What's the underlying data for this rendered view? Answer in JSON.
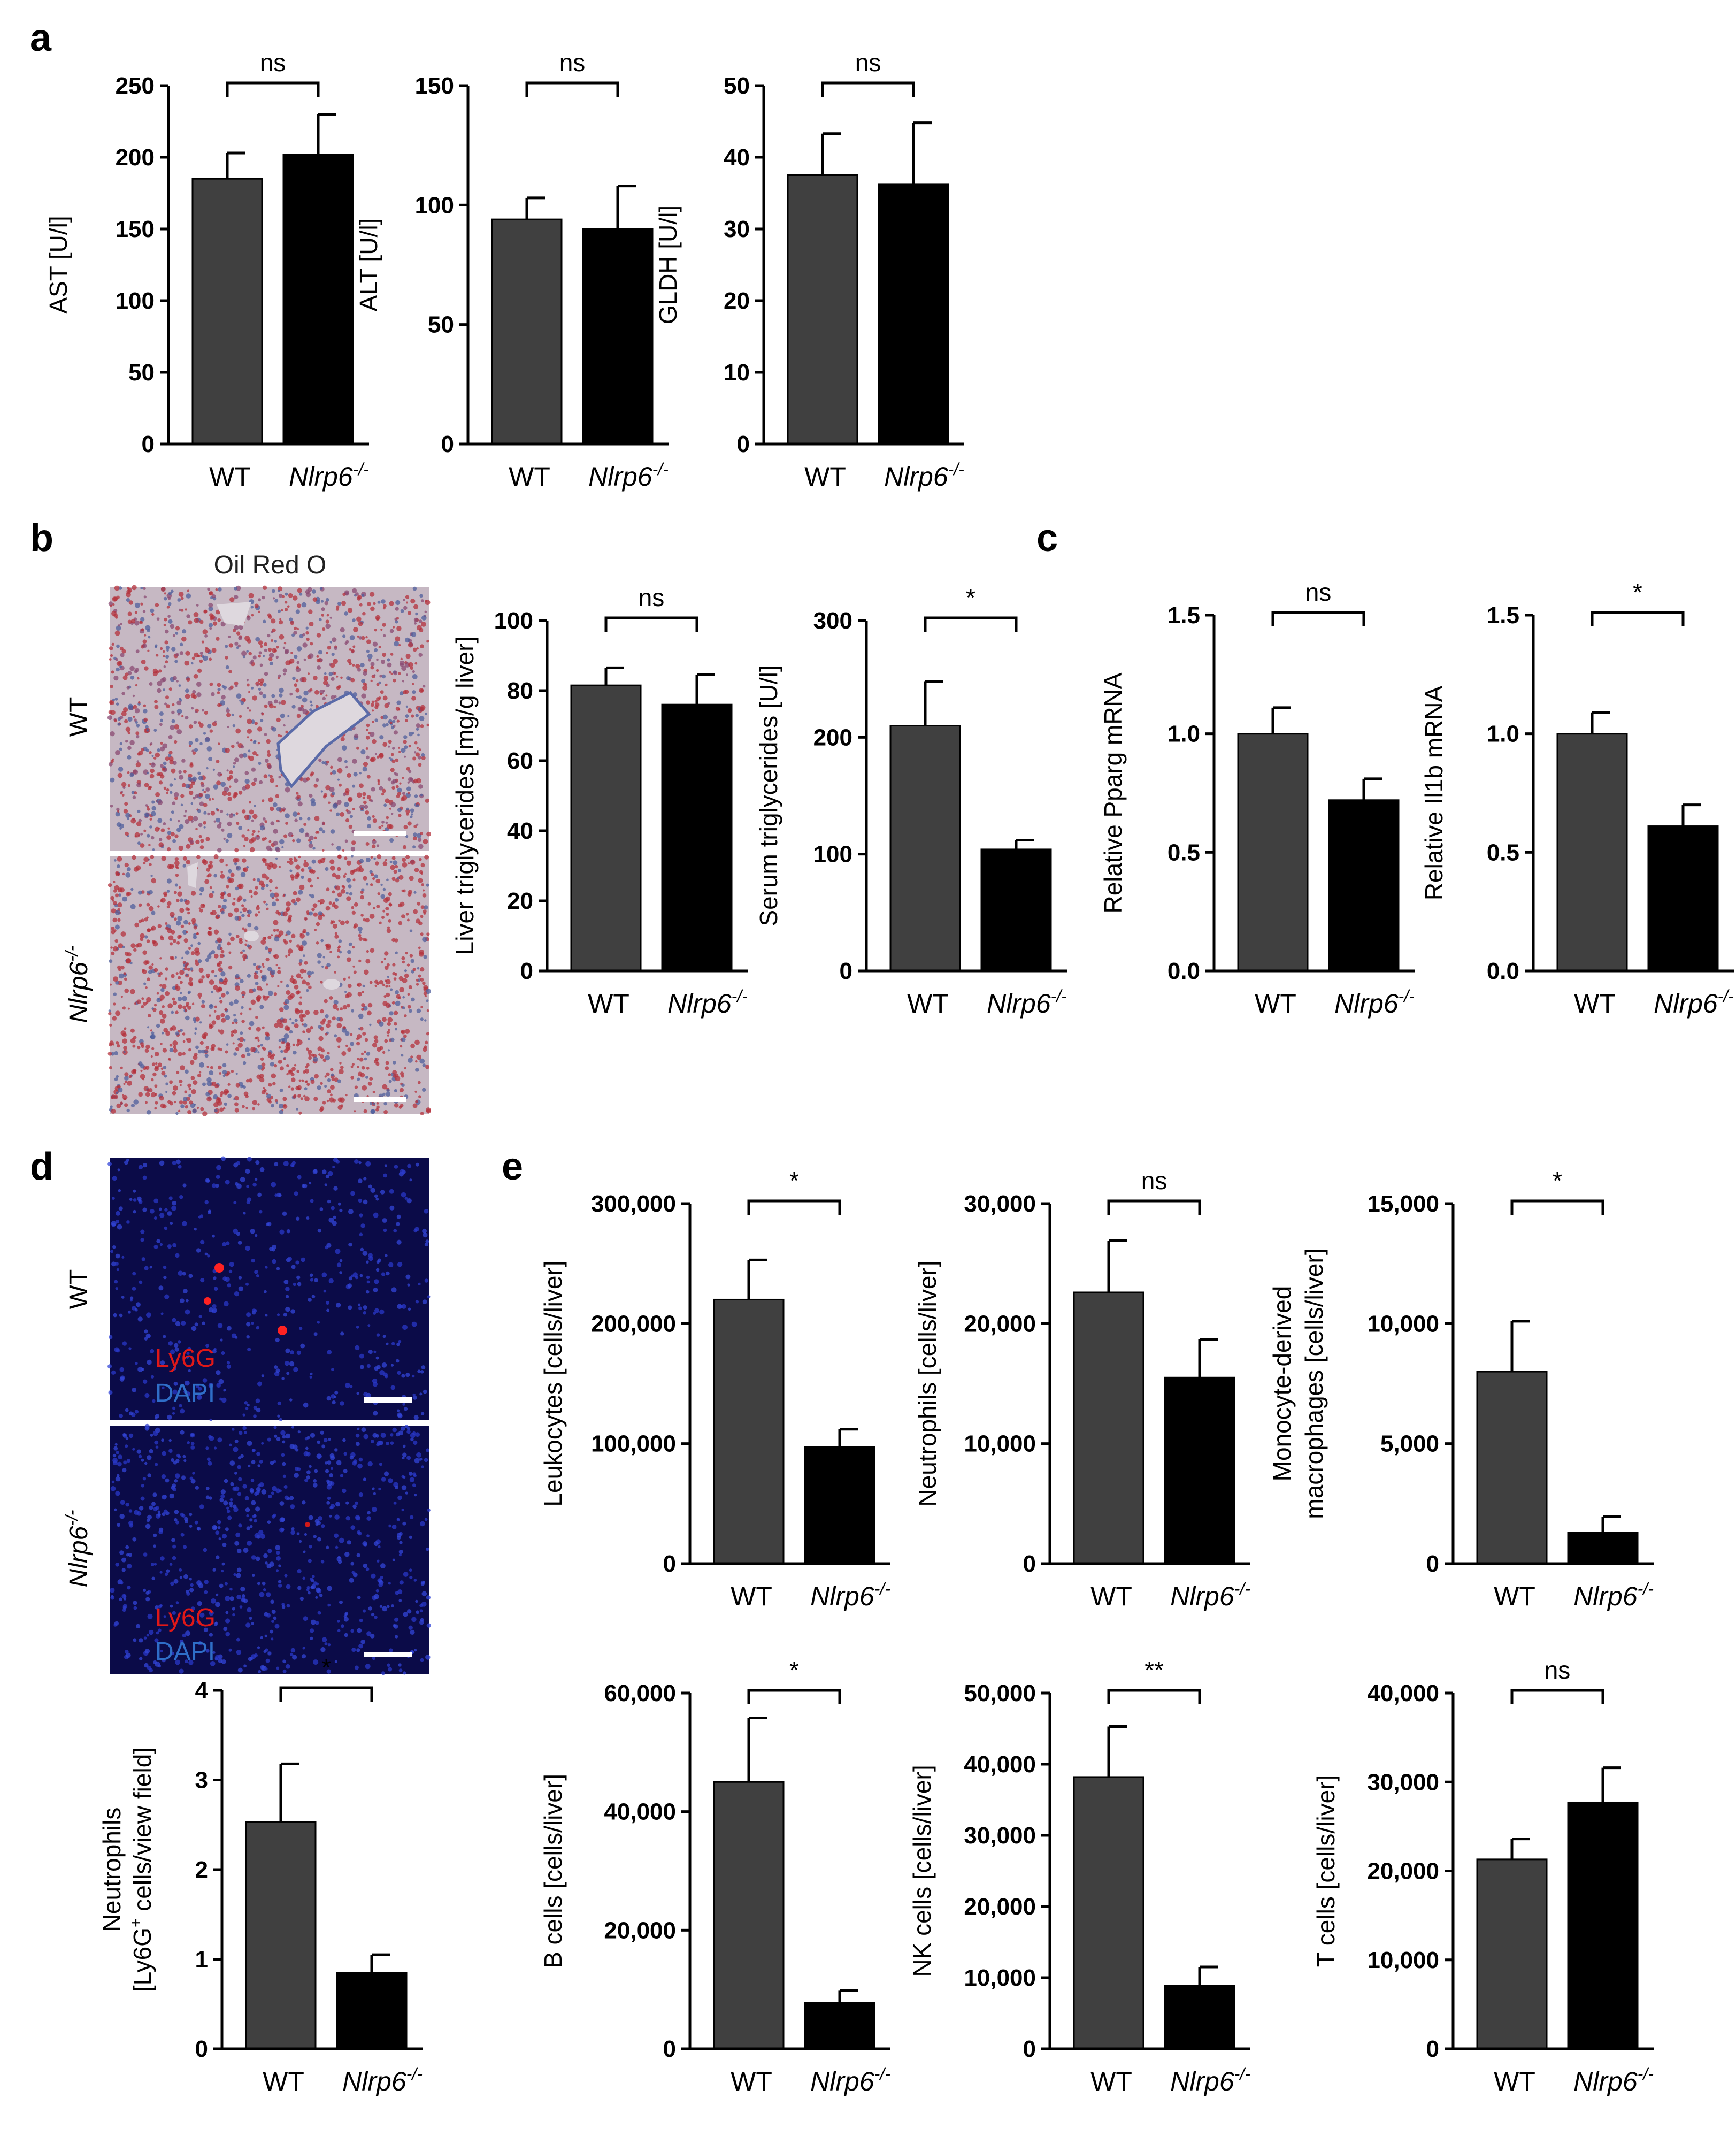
{
  "colors": {
    "wt": "#404040",
    "ko": "#000000",
    "axis": "#000000",
    "oil_bg": "#c6b8c3",
    "oil_red": "#b4323c",
    "oil_blue": "#4f5f9c",
    "fluor_bg": "#0b0b48",
    "fluor_red": "#ff1e1e",
    "fluor_blue": "#2a38c8"
  },
  "panels": {
    "a": {
      "label": "a"
    },
    "b": {
      "label": "b",
      "image_title": "Oil Red O",
      "rows": [
        {
          "label": "WT"
        },
        {
          "label_main": "Nlrp6",
          "label_sup": "-/-"
        }
      ]
    },
    "c": {
      "label": "c"
    },
    "d": {
      "label": "d",
      "rows": [
        {
          "label": "WT"
        },
        {
          "label_main": "Nlrp6",
          "label_sup": "-/-"
        }
      ],
      "stain_1": "Ly6G",
      "stain_2": "DAPI"
    },
    "e": {
      "label": "e"
    }
  },
  "category_labels": {
    "wt": "WT",
    "ko_main": "Nlrp6",
    "ko_sup": "-/-"
  },
  "chart_data": [
    {
      "id": "AST",
      "panel": "a",
      "type": "bar",
      "ylabel": "AST [U/l]",
      "ylim": [
        0,
        250
      ],
      "ticks": [
        "0",
        "50",
        "100",
        "150",
        "200",
        "250"
      ],
      "categories": [
        "WT",
        "Nlrp6-/-"
      ],
      "values": [
        185,
        202
      ],
      "errors": [
        18,
        28
      ],
      "significance": "ns"
    },
    {
      "id": "ALT",
      "panel": "a",
      "type": "bar",
      "ylabel": "ALT [U/l]",
      "ylim": [
        0,
        150
      ],
      "ticks": [
        "0",
        "50",
        "100",
        "150"
      ],
      "categories": [
        "WT",
        "Nlrp6-/-"
      ],
      "values": [
        94,
        90
      ],
      "errors": [
        9,
        18
      ],
      "significance": "ns"
    },
    {
      "id": "GLDH",
      "panel": "a",
      "type": "bar",
      "ylabel": "GLDH [U/l]",
      "ylim": [
        0,
        50
      ],
      "ticks": [
        "0",
        "10",
        "20",
        "30",
        "40",
        "50"
      ],
      "categories": [
        "WT",
        "Nlrp6-/-"
      ],
      "values": [
        37.5,
        36.2
      ],
      "errors": [
        5.8,
        8.6
      ],
      "significance": "ns"
    },
    {
      "id": "LiverTG",
      "panel": "b",
      "type": "bar",
      "ylabel": "Liver triglycerides [mg/g liver]",
      "ylim": [
        0,
        100
      ],
      "ticks": [
        "0",
        "20",
        "40",
        "60",
        "80",
        "100"
      ],
      "categories": [
        "WT",
        "Nlrp6-/-"
      ],
      "values": [
        81.5,
        76
      ],
      "errors": [
        5,
        8.5
      ],
      "significance": "ns"
    },
    {
      "id": "SerumTG",
      "panel": "b",
      "type": "bar",
      "ylabel": "Serum triglycerides [U/l]",
      "ylim": [
        0,
        300
      ],
      "ticks": [
        "0",
        "100",
        "200",
        "300"
      ],
      "categories": [
        "WT",
        "Nlrp6-/-"
      ],
      "values": [
        210,
        104
      ],
      "errors": [
        38,
        8
      ],
      "significance": "*"
    },
    {
      "id": "Pparg",
      "panel": "c",
      "type": "bar",
      "ylabel": "Relative Pparg mRNA",
      "ylim": [
        0,
        1.5
      ],
      "ticks": [
        "0.0",
        "0.5",
        "1.0",
        "1.5"
      ],
      "categories": [
        "WT",
        "Nlrp6-/-"
      ],
      "values": [
        1.0,
        0.72
      ],
      "errors": [
        0.11,
        0.09
      ],
      "significance": "ns"
    },
    {
      "id": "Il1b",
      "panel": "c",
      "type": "bar",
      "ylabel": "Relative Il1b mRNA",
      "ylim": [
        0,
        1.5
      ],
      "ticks": [
        "0.0",
        "0.5",
        "1.0",
        "1.5"
      ],
      "categories": [
        "WT",
        "Nlrp6-/-"
      ],
      "values": [
        1.0,
        0.61
      ],
      "errors": [
        0.09,
        0.09
      ],
      "significance": "*"
    },
    {
      "id": "Neutrophils_d",
      "panel": "d",
      "type": "bar",
      "ylabel_line1": "Neutrophils",
      "ylabel_line2_pre": "[Ly6G",
      "ylabel_line2_sup": "+",
      "ylabel_line2_post": " cells/view field]",
      "ylim": [
        0,
        4
      ],
      "ticks": [
        "0",
        "1",
        "2",
        "3",
        "4"
      ],
      "categories": [
        "WT",
        "Nlrp6-/-"
      ],
      "values": [
        2.53,
        0.85
      ],
      "errors": [
        0.65,
        0.2
      ],
      "significance": "*"
    },
    {
      "id": "Leukocytes",
      "panel": "e",
      "type": "bar",
      "ylabel": "Leukocytes [cells/liver]",
      "ylim": [
        0,
        300000
      ],
      "ticks": [
        "0",
        "100,000",
        "200,000",
        "300,000"
      ],
      "categories": [
        "WT",
        "Nlrp6-/-"
      ],
      "values": [
        220000,
        97000
      ],
      "errors": [
        33000,
        15000
      ],
      "significance": "*"
    },
    {
      "id": "Neutrophils_e",
      "panel": "e",
      "type": "bar",
      "ylabel": "Neutrophils [cells/liver]",
      "ylim": [
        0,
        30000
      ],
      "ticks": [
        "0",
        "10,000",
        "20,000",
        "30,000"
      ],
      "categories": [
        "WT",
        "Nlrp6-/-"
      ],
      "values": [
        22600,
        15500
      ],
      "errors": [
        4300,
        3200
      ],
      "significance": "ns"
    },
    {
      "id": "MoMF",
      "panel": "e",
      "type": "bar",
      "ylabel_line1": "Monocyte-derived",
      "ylabel_line2": "macrophages [cells/liver]",
      "ylim": [
        0,
        15000
      ],
      "ticks": [
        "0",
        "5,000",
        "10,000",
        "15,000"
      ],
      "categories": [
        "WT",
        "Nlrp6-/-"
      ],
      "values": [
        8000,
        1300
      ],
      "errors": [
        2100,
        650
      ],
      "significance": "*"
    },
    {
      "id": "Bcells",
      "panel": "e",
      "type": "bar",
      "ylabel": "B cells [cells/liver]",
      "ylim": [
        0,
        60000
      ],
      "ticks": [
        "0",
        "20,000",
        "40,000",
        "60,000"
      ],
      "categories": [
        "WT",
        "Nlrp6-/-"
      ],
      "values": [
        45000,
        7800
      ],
      "errors": [
        10800,
        2000
      ],
      "significance": "*"
    },
    {
      "id": "NKcells",
      "panel": "e",
      "type": "bar",
      "ylabel": "NK cells [cells/liver]",
      "ylim": [
        0,
        50000
      ],
      "ticks": [
        "0",
        "10,000",
        "20,000",
        "30,000",
        "40,000",
        "50,000"
      ],
      "categories": [
        "WT",
        "Nlrp6-/-"
      ],
      "values": [
        38200,
        8900
      ],
      "errors": [
        7100,
        2600
      ],
      "significance": "**"
    },
    {
      "id": "Tcells",
      "panel": "e",
      "type": "bar",
      "ylabel": "T cells [cells/liver]",
      "ylim": [
        0,
        40000
      ],
      "ticks": [
        "0",
        "10,000",
        "20,000",
        "30,000",
        "40,000"
      ],
      "categories": [
        "WT",
        "Nlrp6-/-"
      ],
      "values": [
        21300,
        27700
      ],
      "errors": [
        2300,
        3900
      ],
      "significance": "ns"
    }
  ]
}
